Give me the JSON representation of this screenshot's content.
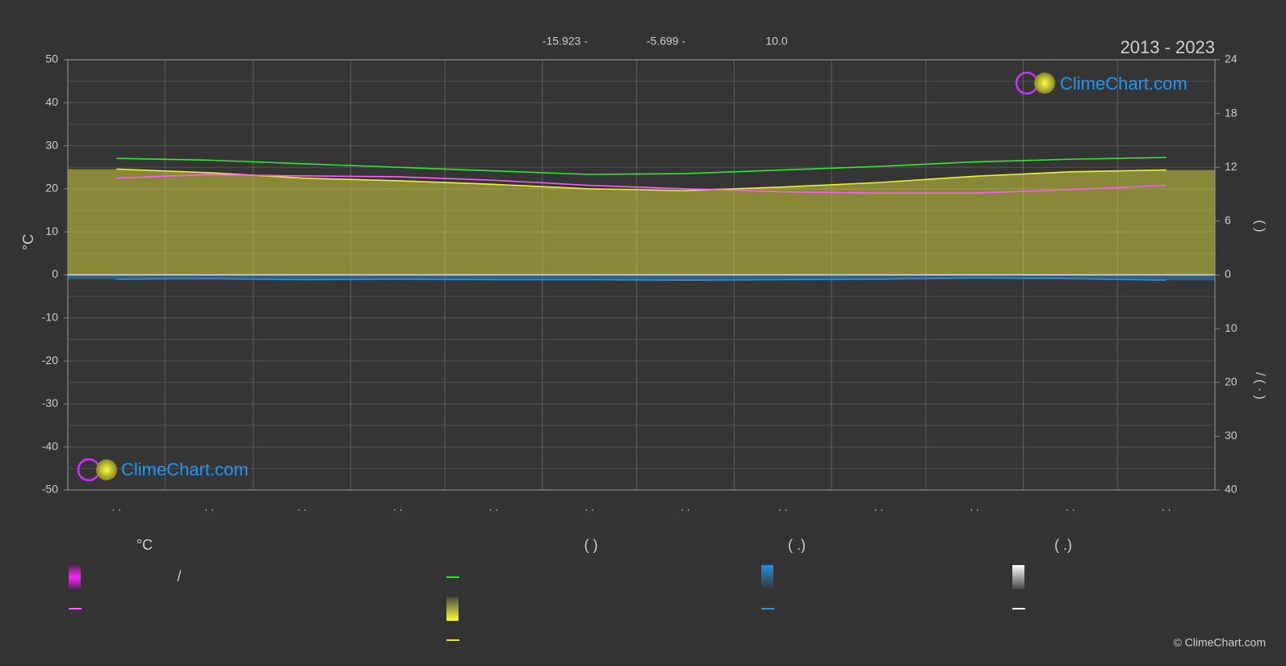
{
  "chart_data": {
    "type": "line",
    "title": "2013 - 2023",
    "header_labels": [
      "-15.923 -",
      "-5.699 -",
      "10.0"
    ],
    "y_label": "°C",
    "y2_label": "(   )",
    "y3_label": "/     (  ·  )",
    "categories": [
      ". .",
      ". .",
      ". .",
      ". .",
      ". .",
      ". .",
      ". .",
      ". .",
      ". .",
      ". .",
      ". .",
      ". ."
    ],
    "ylim": [
      -50,
      50
    ],
    "yticks": [
      50,
      40,
      30,
      20,
      10,
      0,
      -10,
      -20,
      -30,
      -40,
      -50
    ],
    "minor_yticks": [
      45,
      35,
      25,
      15,
      5,
      -5,
      -15,
      -25,
      -35,
      -45
    ],
    "y2lim": [
      0,
      24
    ],
    "y2ticks": [
      0,
      6,
      12,
      18,
      24
    ],
    "y3lim": [
      0,
      40
    ],
    "y3ticks": [
      10,
      20,
      30,
      40
    ],
    "grid": true,
    "series": [
      {
        "color": "#2ee82e",
        "axis": "y2",
        "fill": false,
        "values": [
          13.0,
          12.8,
          12.4,
          12.0,
          11.6,
          11.2,
          11.3,
          11.7,
          12.1,
          12.6,
          12.9,
          13.1
        ]
      },
      {
        "color": "#eded3c",
        "axis": "y2",
        "fill": true,
        "values": [
          11.8,
          11.4,
          10.8,
          10.5,
          10.1,
          9.6,
          9.4,
          9.8,
          10.3,
          11.0,
          11.5,
          11.7
        ]
      },
      {
        "color": "#ff5cff",
        "axis": "y",
        "fill": false,
        "values": [
          22.5,
          23.3,
          23.0,
          22.8,
          22.0,
          20.8,
          20.0,
          19.3,
          19.0,
          19.0,
          19.8,
          20.8
        ]
      },
      {
        "color": "#2b8fe0",
        "axis": "y3",
        "fill": true,
        "values": [
          0.8,
          0.7,
          0.9,
          0.8,
          0.9,
          0.9,
          1.0,
          0.9,
          0.8,
          0.6,
          0.7,
          1.0
        ]
      }
    ]
  },
  "legend": {
    "headers": [
      "°C",
      "(          )",
      "(   .)",
      "(   .)"
    ],
    "separator": "/"
  },
  "watermark": "ClimeChart.com",
  "copyright": "© ClimeChart.com"
}
